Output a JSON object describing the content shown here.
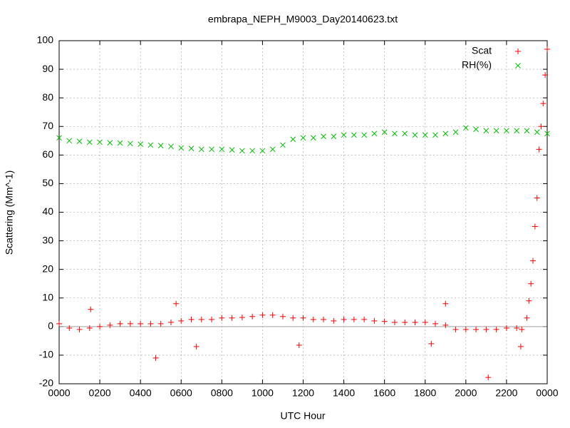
{
  "chart_data": {
    "type": "scatter",
    "title": "embrapa_NEPH_M9003_Day20140623.txt",
    "x_label": "UTC Hour",
    "y_label": "Scattering (Mm^-1)",
    "xlim": [
      0,
      24
    ],
    "ylim": [
      -20,
      100
    ],
    "xticks": [
      {
        "value": 0,
        "label": "0000"
      },
      {
        "value": 2,
        "label": "0200"
      },
      {
        "value": 4,
        "label": "0400"
      },
      {
        "value": 6,
        "label": "0600"
      },
      {
        "value": 8,
        "label": "0800"
      },
      {
        "value": 10,
        "label": "1000"
      },
      {
        "value": 12,
        "label": "1200"
      },
      {
        "value": 14,
        "label": "1400"
      },
      {
        "value": 16,
        "label": "1600"
      },
      {
        "value": 18,
        "label": "1800"
      },
      {
        "value": 20,
        "label": "2000"
      },
      {
        "value": 22,
        "label": "2200"
      },
      {
        "value": 24,
        "label": "0000"
      }
    ],
    "yticks": [
      -20,
      -10,
      0,
      10,
      20,
      30,
      40,
      50,
      60,
      70,
      80,
      90,
      100
    ],
    "grid": true,
    "legend": "top-right",
    "series": [
      {
        "name": "Scat",
        "color": "#ff0000",
        "marker": "+",
        "x": [
          0,
          0.5,
          1,
          1.5,
          2,
          2.5,
          3,
          3.5,
          4,
          4.5,
          5,
          5.5,
          6,
          6.5,
          7,
          7.5,
          8,
          8.5,
          9,
          9.5,
          10,
          10.5,
          11,
          11.5,
          12,
          12.5,
          13,
          13.5,
          14,
          14.5,
          15,
          15.5,
          16,
          16.5,
          17,
          17.5,
          18,
          18.5,
          19,
          19.5,
          20,
          20.5,
          21,
          21.5,
          22,
          22.5,
          22.75,
          23,
          23.1,
          23.2,
          23.3,
          23.4,
          23.5,
          23.6,
          23.7,
          23.8,
          23.9,
          24,
          1.55,
          4.75,
          5.75,
          6.75,
          11.8,
          18.3,
          19,
          21.1,
          22.7
        ],
        "values": [
          1,
          -0.5,
          -1,
          -0.5,
          0,
          0.5,
          1,
          1,
          1,
          1,
          1,
          1.5,
          2,
          2.5,
          2.5,
          2.5,
          3,
          3,
          3.2,
          3.5,
          4,
          4,
          3.5,
          3,
          3,
          2.5,
          2.5,
          2,
          2.5,
          2.5,
          2.5,
          2,
          1.8,
          1.5,
          1.5,
          1.5,
          1.5,
          1,
          0.5,
          -1,
          -1,
          -1,
          -1,
          -1,
          -0.5,
          -0.5,
          -1,
          3,
          9,
          15,
          23,
          35,
          45,
          62,
          70,
          78,
          88,
          97,
          6,
          -11,
          8,
          -7,
          -6.5,
          -6,
          8,
          -17.8,
          -7
        ]
      },
      {
        "name": "RH(%)",
        "color": "#00c000",
        "marker": "x",
        "x": [
          0,
          0.5,
          1,
          1.5,
          2,
          2.5,
          3,
          3.5,
          4,
          4.5,
          5,
          5.5,
          6,
          6.5,
          7,
          7.5,
          8,
          8.5,
          9,
          9.5,
          10,
          10.5,
          11,
          11.5,
          12,
          12.5,
          13,
          13.5,
          14,
          14.5,
          15,
          15.5,
          16,
          16.5,
          17,
          17.5,
          18,
          18.5,
          19,
          19.5,
          20,
          20.5,
          21,
          21.5,
          22,
          22.5,
          23,
          23.5,
          24
        ],
        "values": [
          66,
          65,
          64.8,
          64.5,
          64.5,
          64.3,
          64.2,
          64,
          63.8,
          63.5,
          63.3,
          63,
          62.5,
          62.3,
          62,
          62,
          62,
          61.8,
          61.5,
          61.5,
          61.5,
          62,
          63.5,
          65.5,
          66,
          66,
          66.5,
          66.5,
          67,
          67,
          67,
          67.5,
          68,
          67.5,
          67.5,
          67,
          67,
          67,
          67.5,
          68,
          69.5,
          69,
          68.5,
          68.5,
          68.5,
          68.5,
          68.5,
          68,
          67.5
        ]
      }
    ]
  }
}
